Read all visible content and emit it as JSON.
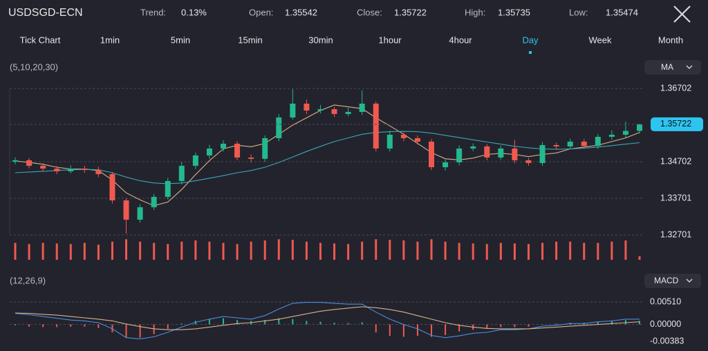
{
  "header": {
    "symbol": "USDSGD-ECN",
    "stats": [
      {
        "label": "Trend:",
        "value": "0.13%"
      },
      {
        "label": "Open:",
        "value": "1.35542"
      },
      {
        "label": "Close:",
        "value": "1.35722"
      },
      {
        "label": "High:",
        "value": "1.35735"
      },
      {
        "label": "Low:",
        "value": "1.35474"
      }
    ]
  },
  "tabs": {
    "items": [
      "Tick Chart",
      "1min",
      "5min",
      "15min",
      "30min",
      "1hour",
      "4hour",
      "Day",
      "Week",
      "Month"
    ],
    "active": 7,
    "active_color": "#2ec4f0"
  },
  "chart_data": [
    {
      "type": "candlestick",
      "indicator": "(5,10,20,30)",
      "selector": "MA",
      "up_color": "#22b98e",
      "down_color": "#f0594f",
      "grid": true,
      "ylim": [
        1.32701,
        1.36702
      ],
      "yticks": [
        1.36702,
        1.34702,
        1.33701,
        1.32701
      ],
      "open": [
        1.347,
        1.3474,
        1.34589,
        1.34513,
        1.34438,
        1.34513,
        1.34476,
        1.34362,
        1.33645,
        1.33117,
        1.33457,
        1.3374,
        1.34174,
        1.34589,
        1.34872,
        1.35061,
        1.35193,
        1.34815,
        1.3478,
        1.35344,
        1.3591,
        1.36287,
        1.36098,
        1.36136,
        1.36004,
        1.36061,
        1.36287,
        1.35061,
        1.35438,
        1.35344,
        1.35249,
        1.34551,
        1.34683,
        1.35061,
        1.35117,
        1.34815,
        1.35061,
        1.3474,
        1.34664,
        1.35155,
        1.35117,
        1.35249,
        1.3513,
        1.35381,
        1.35438,
        1.35542
      ],
      "high": [
        1.3482,
        1.348,
        1.3466,
        1.3458,
        1.346,
        1.3459,
        1.3456,
        1.3442,
        1.337,
        1.3354,
        1.3382,
        1.3426,
        1.347,
        1.3495,
        1.3516,
        1.3529,
        1.3526,
        1.349,
        1.3542,
        1.36,
        1.3668,
        1.364,
        1.3625,
        1.362,
        1.3618,
        1.3665,
        1.3635,
        1.3555,
        1.355,
        1.3542,
        1.3532,
        1.3476,
        1.3515,
        1.352,
        1.3518,
        1.3514,
        1.353,
        1.348,
        1.3524,
        1.3522,
        1.3533,
        1.3532,
        1.3546,
        1.3556,
        1.358,
        1.35735
      ],
      "low": [
        1.3463,
        1.3452,
        1.3444,
        1.3436,
        1.3438,
        1.344,
        1.3428,
        1.3356,
        1.3274,
        1.3304,
        1.3338,
        1.3367,
        1.3408,
        1.345,
        1.3478,
        1.3498,
        1.3474,
        1.3468,
        1.347,
        1.3526,
        1.3585,
        1.36,
        1.3602,
        1.3592,
        1.3594,
        1.3598,
        1.3498,
        1.3498,
        1.3526,
        1.3517,
        1.3447,
        1.3446,
        1.346,
        1.3499,
        1.3474,
        1.3475,
        1.3466,
        1.3459,
        1.3459,
        1.3504,
        1.3504,
        1.3506,
        1.3505,
        1.353,
        1.3536,
        1.35474
      ],
      "close": [
        1.3474,
        1.34589,
        1.34513,
        1.34438,
        1.34513,
        1.34476,
        1.34362,
        1.33645,
        1.33117,
        1.33457,
        1.3374,
        1.34174,
        1.34589,
        1.34872,
        1.35061,
        1.35193,
        1.34815,
        1.3478,
        1.35344,
        1.3591,
        1.36287,
        1.36098,
        1.36136,
        1.36004,
        1.36061,
        1.36287,
        1.35061,
        1.35438,
        1.35344,
        1.35249,
        1.34551,
        1.34683,
        1.35061,
        1.35117,
        1.34815,
        1.35061,
        1.3474,
        1.34664,
        1.35155,
        1.35117,
        1.35249,
        1.3513,
        1.35381,
        1.35438,
        1.35542,
        1.35722
      ],
      "current_color": "#2ec4f0",
      "ma_lines": [
        {
          "color": "#d8b48a",
          "values": [
            1.3472,
            1.3468,
            1.3463,
            1.3455,
            1.345,
            1.345,
            1.3446,
            1.342,
            1.3385,
            1.3366,
            1.335,
            1.336,
            1.3394,
            1.3435,
            1.3473,
            1.3505,
            1.3515,
            1.3511,
            1.352,
            1.3545,
            1.357,
            1.359,
            1.361,
            1.3625,
            1.362,
            1.3615,
            1.359,
            1.3568,
            1.3545,
            1.352,
            1.3495,
            1.3478,
            1.3475,
            1.348,
            1.349,
            1.3493,
            1.349,
            1.3484,
            1.349,
            1.3494,
            1.3505,
            1.351,
            1.3515,
            1.3525,
            1.3535,
            1.355
          ]
        },
        {
          "color": "#3ba7b5",
          "values": [
            1.344,
            1.3442,
            1.3444,
            1.3446,
            1.3448,
            1.3449,
            1.3448,
            1.344,
            1.3428,
            1.3418,
            1.3412,
            1.341,
            1.3412,
            1.3418,
            1.3425,
            1.3432,
            1.344,
            1.3446,
            1.3455,
            1.3468,
            1.3483,
            1.3498,
            1.3512,
            1.3525,
            1.3535,
            1.3545,
            1.355,
            1.3552,
            1.3553,
            1.3552,
            1.3548,
            1.3542,
            1.3536,
            1.353,
            1.3524,
            1.3518,
            1.3512,
            1.3508,
            1.3505,
            1.3504,
            1.3505,
            1.3507,
            1.351,
            1.3514,
            1.3518,
            1.3522
          ]
        }
      ]
    },
    {
      "type": "bar",
      "color": "#f0594f",
      "ylim": [
        0,
        40
      ],
      "values": [
        28,
        26,
        28,
        27,
        26,
        28,
        25,
        30,
        34,
        30,
        28,
        26,
        30,
        32,
        30,
        28,
        26,
        30,
        32,
        34,
        33,
        30,
        28,
        27,
        26,
        30,
        34,
        33,
        32,
        30,
        34,
        30,
        28,
        27,
        26,
        28,
        27,
        26,
        28,
        30,
        30,
        28,
        28,
        30,
        32,
        6
      ]
    },
    {
      "type": "macd",
      "indicator": "(12,26,9)",
      "selector": "MACD",
      "grid": true,
      "ylim": [
        -0.00383,
        0.0051
      ],
      "yticks": [
        {
          "value": 0.0051,
          "label": "0.00510"
        },
        {
          "value": 0,
          "label": "0.00000"
        },
        -0.00383
      ],
      "up_color": "#2bb39a",
      "down_color": "#f0594f",
      "histogram": [
        -0.0002,
        -0.0005,
        -0.0006,
        -0.0006,
        -0.0005,
        -0.0005,
        -0.0008,
        -0.0018,
        -0.003,
        -0.003,
        -0.0022,
        -0.001,
        0.0002,
        0.0008,
        0.0012,
        0.0014,
        0.001,
        0.0008,
        0.001,
        0.0014,
        0.0012,
        0.0008,
        0.0006,
        0.0004,
        0.0003,
        0.0005,
        -0.0018,
        -0.0026,
        -0.0028,
        -0.0026,
        -0.0028,
        -0.0024,
        -0.0016,
        -0.0012,
        -0.001,
        -0.0006,
        -0.0006,
        -0.0005,
        0.0,
        0.0002,
        0.0004,
        0.0004,
        0.0006,
        0.0008,
        0.001,
        0.0008
      ],
      "lines": [
        {
          "color": "#4a8fe0",
          "values": [
            0.0025,
            0.0022,
            0.0018,
            0.0014,
            0.001,
            0.0008,
            0.0004,
            -0.001,
            -0.003,
            -0.0033,
            -0.0028,
            -0.0018,
            -0.0006,
            0.0005,
            0.0012,
            0.0018,
            0.0015,
            0.0012,
            0.002,
            0.0035,
            0.0048,
            0.005,
            0.005,
            0.0048,
            0.0046,
            0.0046,
            0.0028,
            0.0012,
            0.0,
            -0.001,
            -0.0025,
            -0.003,
            -0.0026,
            -0.002,
            -0.0018,
            -0.0012,
            -0.0012,
            -0.001,
            -0.0004,
            -0.0002,
            0.0002,
            0.0002,
            0.0006,
            0.0008,
            0.0012,
            0.0012
          ]
        },
        {
          "color": "#d8b48a",
          "values": [
            0.0026,
            0.0025,
            0.0023,
            0.0021,
            0.0018,
            0.0015,
            0.0012,
            0.0008,
            0.0001,
            -0.0005,
            -0.001,
            -0.0012,
            -0.0012,
            -0.001,
            -0.0006,
            -0.0002,
            0.0002,
            0.0004,
            0.0008,
            0.0012,
            0.0018,
            0.0024,
            0.003,
            0.0034,
            0.0037,
            0.004,
            0.0038,
            0.0034,
            0.0028,
            0.002,
            0.0012,
            0.0004,
            -0.0002,
            -0.0006,
            -0.0009,
            -0.001,
            -0.001,
            -0.001,
            -0.0008,
            -0.0006,
            -0.0004,
            -0.0002,
            0.0,
            0.0002,
            0.0004,
            0.0006
          ]
        }
      ]
    }
  ]
}
